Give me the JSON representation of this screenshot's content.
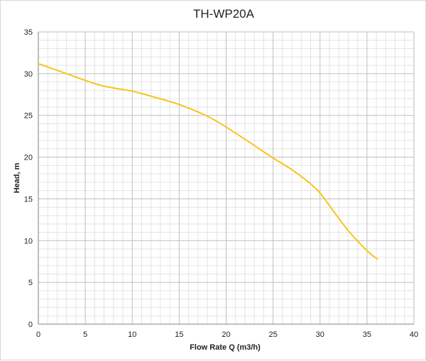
{
  "chart_data": {
    "type": "line",
    "title": "TH-WP20A",
    "xlabel": "Flow Rate Q (m3/h)",
    "ylabel": "Head, m",
    "xlim": [
      0,
      40
    ],
    "ylim": [
      0,
      35
    ],
    "x_ticks": [
      "0",
      "5",
      "10",
      "15",
      "20",
      "25",
      "30",
      "35",
      "40"
    ],
    "y_ticks": [
      "0",
      "5",
      "10",
      "15",
      "20",
      "25",
      "30",
      "35"
    ],
    "grid": true,
    "legend": "none",
    "colors": {
      "series": "#f5c518",
      "major_grid": "#bfbfbf",
      "minor_grid": "#e4e4e4",
      "axis": "#7f7f7f"
    },
    "series": [
      {
        "x": [
          0,
          3,
          5,
          7,
          10,
          12,
          15,
          18,
          20,
          23,
          25,
          27,
          29,
          30,
          31,
          33,
          35,
          36.1
        ],
        "y": [
          31.2,
          30.0,
          29.2,
          28.5,
          27.9,
          27.3,
          26.3,
          24.9,
          23.6,
          21.4,
          19.9,
          18.5,
          16.8,
          15.7,
          14.2,
          11.2,
          8.8,
          7.8
        ]
      }
    ]
  }
}
